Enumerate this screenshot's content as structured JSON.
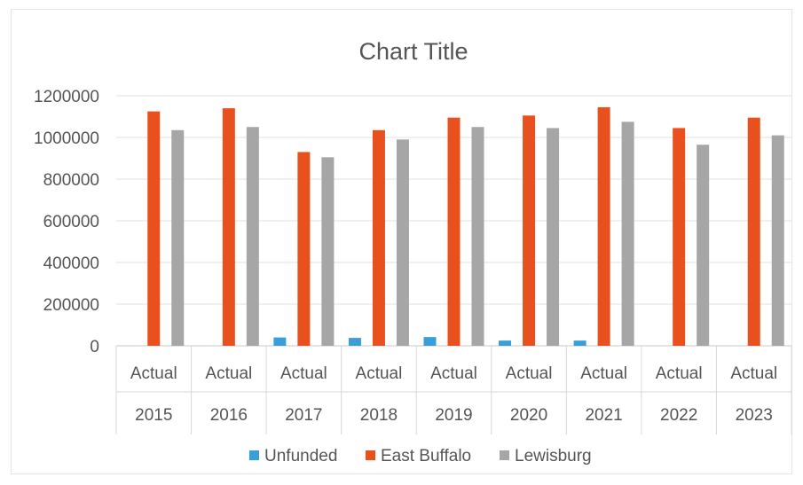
{
  "chart_data": {
    "type": "bar",
    "title": "Chart Title",
    "xlabel": "",
    "ylabel": "",
    "ylim": [
      0,
      1200000
    ],
    "yticks": [
      "0",
      "200000",
      "400000",
      "600000",
      "800000",
      "1000000",
      "1200000"
    ],
    "categories": [
      {
        "line1": "Actual",
        "line2": "2015"
      },
      {
        "line1": "Actual",
        "line2": "2016"
      },
      {
        "line1": "Actual",
        "line2": "2017"
      },
      {
        "line1": "Actual",
        "line2": "2018"
      },
      {
        "line1": "Actual",
        "line2": "2019"
      },
      {
        "line1": "Actual",
        "line2": "2020"
      },
      {
        "line1": "Actual",
        "line2": "2021"
      },
      {
        "line1": "Actual",
        "line2": "2022"
      },
      {
        "line1": "Actual",
        "line2": "2023"
      }
    ],
    "series": [
      {
        "name": "Unfunded",
        "color": "#3a9fd8",
        "values": [
          0,
          0,
          40000,
          38000,
          42000,
          25000,
          25000,
          0,
          0
        ]
      },
      {
        "name": "East Buffalo",
        "color": "#e8501e",
        "values": [
          1125000,
          1140000,
          930000,
          1035000,
          1095000,
          1105000,
          1145000,
          1045000,
          1095000
        ]
      },
      {
        "name": "Lewisburg",
        "color": "#a6a6a6",
        "values": [
          1035000,
          1050000,
          905000,
          990000,
          1050000,
          1045000,
          1075000,
          965000,
          1010000
        ]
      }
    ],
    "grid": true,
    "legend_position": "bottom"
  }
}
